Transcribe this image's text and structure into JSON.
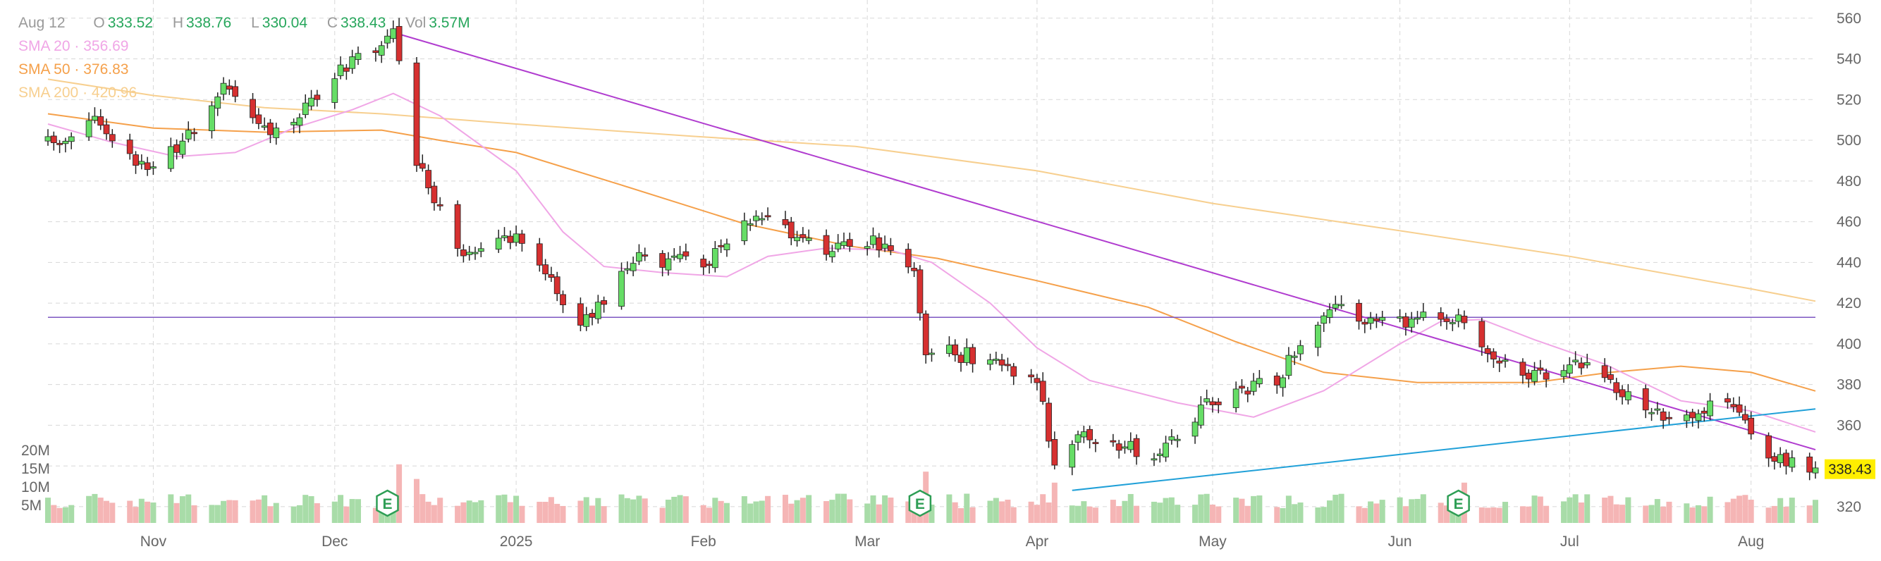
{
  "ohlc": {
    "date": "Aug 12",
    "open_label": "O",
    "open": "333.52",
    "high_label": "H",
    "high": "338.76",
    "low_label": "L",
    "low": "330.04",
    "close_label": "C",
    "close": "338.43",
    "vol_label": "Vol",
    "vol": "3.57M"
  },
  "indicators": [
    {
      "label": "SMA 20",
      "value": "356.69",
      "color": "#f0a6e6"
    },
    {
      "label": "SMA 50",
      "value": "376.83",
      "color": "#f5a04a"
    },
    {
      "label": "SMA 200",
      "value": "420.96",
      "color": "#f7cf8f"
    }
  ],
  "colors": {
    "up": "#4caf50",
    "down": "#e04848",
    "up_fill": "#66dd66",
    "down_fill": "#d63030",
    "vol_up": "#a8dca8",
    "vol_down": "#f5b5b5",
    "hline": "#7e57c2",
    "downtrend": "#b03ccf",
    "uptrend": "#20a0d8",
    "grid": "#d8d8d8",
    "last_price_bg": "#ffee00",
    "earnings": "#2e9e55"
  },
  "earnings_marker_label": "E",
  "chart_data": {
    "type": "candlestick",
    "x_ticks": [
      "Nov",
      "Dec",
      "2025",
      "Feb",
      "Mar",
      "Apr",
      "May",
      "Jun",
      "Jul",
      "Aug"
    ],
    "x_tick_dates": [
      "2024-11-01",
      "2024-12-02",
      "2025-01-02",
      "2025-02-03",
      "2025-03-03",
      "2025-04-01",
      "2025-05-01",
      "2025-06-02",
      "2025-07-01",
      "2025-08-01"
    ],
    "y_ticks": [
      320,
      340,
      360,
      380,
      400,
      420,
      440,
      460,
      480,
      500,
      520,
      540,
      560
    ],
    "y_range": [
      312,
      562
    ],
    "volume_ticks": [
      "5M",
      "10M",
      "15M",
      "20M"
    ],
    "volume_tick_values": [
      5,
      10,
      15,
      20
    ],
    "volume_max": 25,
    "last_price": "338.43",
    "horizontal_line": 413,
    "earnings_dates": [
      "2024-12-11",
      "2025-03-12",
      "2025-06-12"
    ],
    "downtrend_line": [
      {
        "date": "2024-12-12",
        "price": 553
      },
      {
        "date": "2025-08-12",
        "price": 348
      }
    ],
    "uptrend_line": [
      {
        "date": "2025-04-07",
        "price": 328
      },
      {
        "date": "2025-08-12",
        "price": 368
      }
    ],
    "sma20": [
      [
        "2024-10-14",
        508
      ],
      [
        "2024-10-25",
        499
      ],
      [
        "2024-11-05",
        492
      ],
      [
        "2024-11-15",
        494
      ],
      [
        "2024-11-25",
        506
      ],
      [
        "2024-12-05",
        515
      ],
      [
        "2024-12-12",
        523
      ],
      [
        "2024-12-20",
        512
      ],
      [
        "2025-01-02",
        485
      ],
      [
        "2025-01-10",
        455
      ],
      [
        "2025-01-17",
        438
      ],
      [
        "2025-01-27",
        435
      ],
      [
        "2025-02-07",
        433
      ],
      [
        "2025-02-14",
        443
      ],
      [
        "2025-02-24",
        447
      ],
      [
        "2025-03-07",
        446
      ],
      [
        "2025-03-14",
        440
      ],
      [
        "2025-03-24",
        420
      ],
      [
        "2025-04-01",
        398
      ],
      [
        "2025-04-10",
        382
      ],
      [
        "2025-04-25",
        371
      ],
      [
        "2025-05-08",
        364
      ],
      [
        "2025-05-20",
        377
      ],
      [
        "2025-06-02",
        400
      ],
      [
        "2025-06-09",
        411
      ],
      [
        "2025-06-16",
        412
      ],
      [
        "2025-06-25",
        402
      ],
      [
        "2025-07-07",
        390
      ],
      [
        "2025-07-20",
        372
      ],
      [
        "2025-08-01",
        367
      ],
      [
        "2025-08-12",
        356.69
      ]
    ],
    "sma50": [
      [
        "2024-10-14",
        513
      ],
      [
        "2024-11-01",
        506
      ],
      [
        "2024-11-20",
        504
      ],
      [
        "2024-12-10",
        505
      ],
      [
        "2024-12-20",
        500
      ],
      [
        "2025-01-02",
        494
      ],
      [
        "2025-01-20",
        478
      ],
      [
        "2025-02-10",
        459
      ],
      [
        "2025-02-28",
        448
      ],
      [
        "2025-03-15",
        442
      ],
      [
        "2025-04-01",
        431
      ],
      [
        "2025-04-20",
        418
      ],
      [
        "2025-05-05",
        401
      ],
      [
        "2025-05-20",
        386
      ],
      [
        "2025-06-05",
        381
      ],
      [
        "2025-06-25",
        381
      ],
      [
        "2025-07-08",
        386
      ],
      [
        "2025-07-20",
        389
      ],
      [
        "2025-08-01",
        386
      ],
      [
        "2025-08-12",
        376.83
      ]
    ],
    "sma200": [
      [
        "2024-10-14",
        530
      ],
      [
        "2024-11-01",
        522
      ],
      [
        "2024-11-20",
        516
      ],
      [
        "2024-12-10",
        513
      ],
      [
        "2025-01-02",
        508
      ],
      [
        "2025-02-01",
        502
      ],
      [
        "2025-03-01",
        497
      ],
      [
        "2025-04-01",
        485
      ],
      [
        "2025-05-01",
        469
      ],
      [
        "2025-06-01",
        456
      ],
      [
        "2025-07-01",
        443
      ],
      [
        "2025-08-01",
        427
      ],
      [
        "2025-08-12",
        420.96
      ]
    ]
  }
}
